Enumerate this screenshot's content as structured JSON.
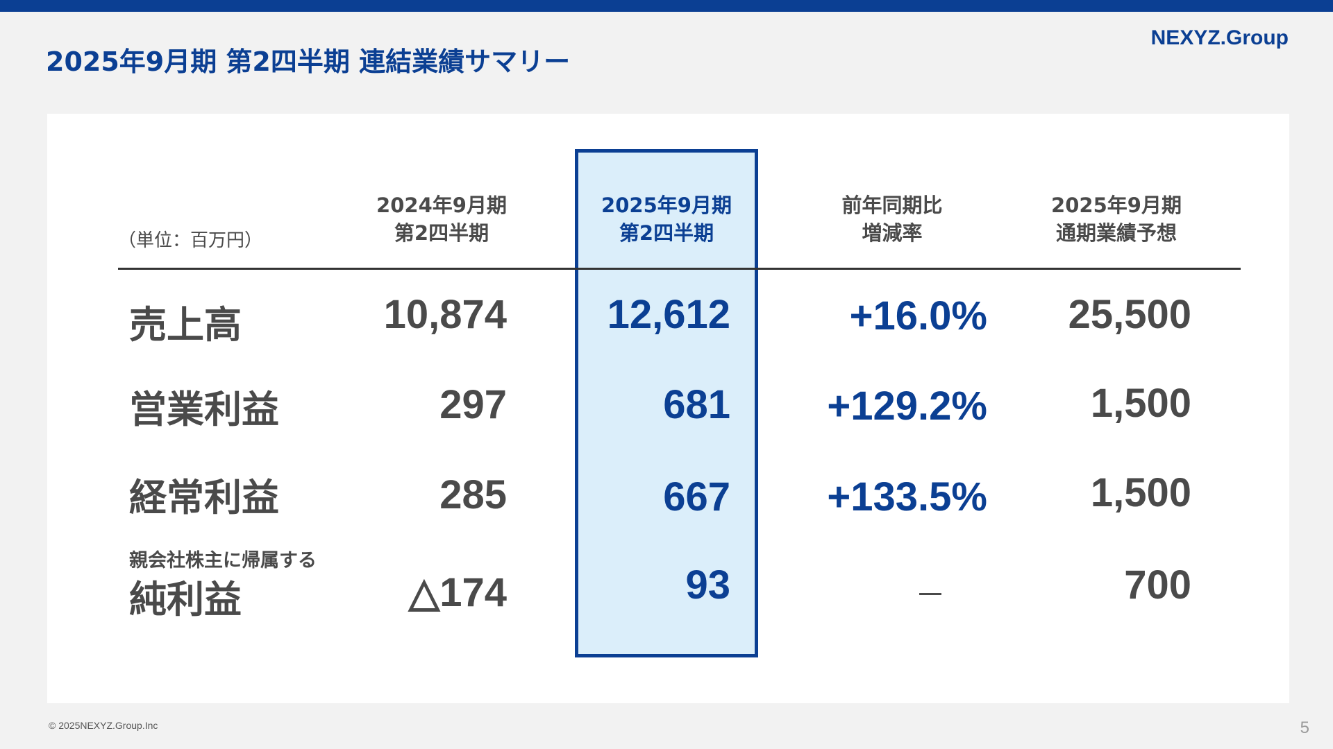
{
  "header": {
    "title": "2025年9月期 第2四半期 連結業績サマリー",
    "logo_main": "NEXYZ.",
    "logo_group": "Group",
    "accent_color": "#0b3f93"
  },
  "table": {
    "unit_label": "（単位：百万円）",
    "columns": [
      {
        "line1": "2024年9月期",
        "line2": "第2四半期"
      },
      {
        "line1": "2025年9月期",
        "line2": "第2四半期"
      },
      {
        "line1": "前年同期比",
        "line2": "増減率"
      },
      {
        "line1": "2025年9月期",
        "line2": "通期業績予想"
      }
    ],
    "rows": [
      {
        "label": "売上高",
        "sublabel": "",
        "prev": "10,874",
        "curr": "12,612",
        "change": "+16.0%",
        "forecast": "25,500"
      },
      {
        "label": "営業利益",
        "sublabel": "",
        "prev": "297",
        "curr": "681",
        "change": "+129.2%",
        "forecast": "1,500"
      },
      {
        "label": "経常利益",
        "sublabel": "",
        "prev": "285",
        "curr": "667",
        "change": "+133.5%",
        "forecast": "1,500"
      },
      {
        "label": "純利益",
        "sublabel": "親会社株主に帰属する",
        "prev": "△174",
        "curr": "93",
        "change": "－",
        "forecast": "700"
      }
    ]
  },
  "footer": {
    "copyright": "© 2025NEXYZ.Group.Inc",
    "page_number": "5"
  }
}
